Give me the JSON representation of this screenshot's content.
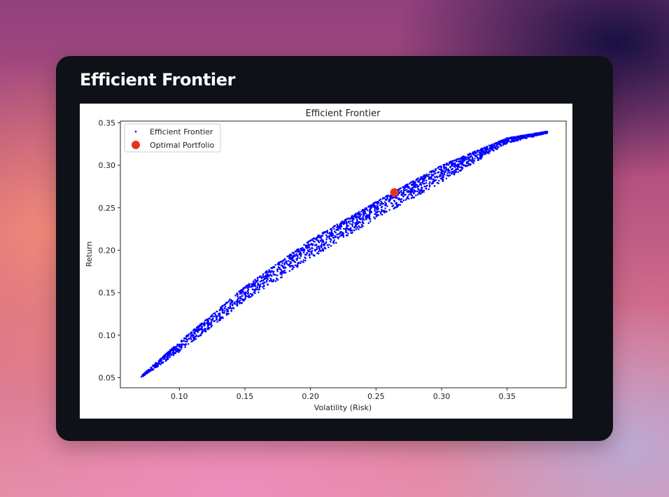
{
  "header": {
    "title": "Efficient Frontier"
  },
  "chart_data": {
    "type": "scatter",
    "title": "Efficient Frontier",
    "xlabel": "Volatility (Risk)",
    "ylabel": "Return",
    "xlim": [
      0.055,
      0.395
    ],
    "ylim": [
      0.038,
      0.352
    ],
    "x_ticks": [
      "0.10",
      "0.15",
      "0.20",
      "0.25",
      "0.30",
      "0.35"
    ],
    "y_ticks": [
      "0.05",
      "0.10",
      "0.15",
      "0.20",
      "0.25",
      "0.30",
      "0.35"
    ],
    "grid": false,
    "legend_position": "top-left",
    "series": [
      {
        "name": "Efficient Frontier",
        "marker": "point",
        "color": "#0000ff",
        "frontier_upper_edge": [
          [
            0.071,
            0.052
          ],
          [
            0.1,
            0.092
          ],
          [
            0.15,
            0.157
          ],
          [
            0.2,
            0.212
          ],
          [
            0.25,
            0.257
          ],
          [
            0.3,
            0.3
          ],
          [
            0.35,
            0.332
          ],
          [
            0.381,
            0.34
          ]
        ],
        "frontier_lower_edge": [
          [
            0.071,
            0.05
          ],
          [
            0.1,
            0.08
          ],
          [
            0.15,
            0.14
          ],
          [
            0.2,
            0.19
          ],
          [
            0.25,
            0.237
          ],
          [
            0.3,
            0.28
          ],
          [
            0.35,
            0.326
          ],
          [
            0.381,
            0.338
          ]
        ]
      },
      {
        "name": "Optimal Portfolio",
        "marker": "circle",
        "color": "#e8331c",
        "points": [
          {
            "x": 0.264,
            "y": 0.268
          }
        ]
      }
    ]
  }
}
